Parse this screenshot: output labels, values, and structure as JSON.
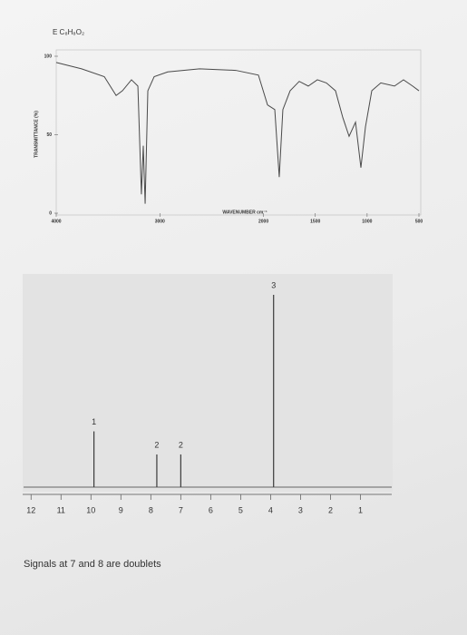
{
  "chart_data": [
    {
      "type": "line",
      "title": "E C₈H₈O₂",
      "x_label": "WAVENUMBER cm⁻¹",
      "y_label": "TRANSMITTANCE (%)",
      "x": [
        4000,
        3755,
        3536,
        3422,
        3361,
        3274,
        3212,
        3178,
        3160,
        3142,
        3116,
        3055,
        2924,
        2617,
        2267,
        2049,
        1961,
        1891,
        1848,
        1813,
        1743,
        1655,
        1568,
        1480,
        1393,
        1305,
        1235,
        1174,
        1112,
        1060,
        1016,
        955,
        868,
        736,
        649,
        561,
        500
      ],
      "values": [
        96,
        92,
        87,
        75,
        78,
        85,
        81,
        12,
        43,
        6,
        78,
        87,
        90,
        92,
        91,
        88,
        69,
        66,
        23,
        66,
        78,
        84,
        81,
        85,
        83,
        78,
        61,
        49,
        58,
        29,
        55,
        78,
        83,
        81,
        85,
        81,
        78
      ],
      "color": "#4a4a4a",
      "xlim": [
        4000,
        500
      ],
      "ylim": [
        0,
        100
      ],
      "xticks": [
        4000,
        3000,
        2000,
        1500,
        1000,
        500
      ],
      "yticks": [
        0,
        50,
        100
      ]
    },
    {
      "type": "peaks",
      "x": [
        9.9,
        7.8,
        7.0,
        3.9
      ],
      "values": [
        29,
        17,
        17,
        100
      ],
      "peak_labels": [
        "1",
        "2",
        "2",
        "3"
      ],
      "color": "#3a3a3a",
      "xlim": [
        12.25,
        -0.5
      ],
      "ylim": [
        0,
        100
      ],
      "xticks": [
        12,
        11,
        10,
        9,
        8,
        7,
        6,
        5,
        4,
        3,
        2,
        1
      ],
      "annotation": "Signals at 7 and 8 are doublets"
    }
  ]
}
